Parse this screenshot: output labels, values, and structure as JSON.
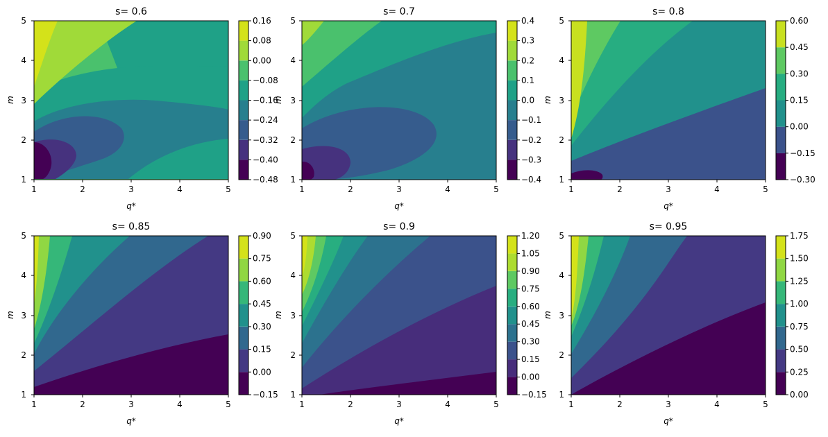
{
  "figure": {
    "panels": [
      {
        "title": "s= 0.6",
        "xlabel": "q*",
        "ylabel": "m",
        "x_ticks": [
          "1",
          "2",
          "3",
          "4",
          "5"
        ],
        "y_ticks": [
          "1",
          "2",
          "3",
          "4",
          "5"
        ],
        "colorbar": {
          "tick_labels": [
            "−0.48",
            "−0.40",
            "−0.32",
            "−0.24",
            "−0.16",
            "−0.08",
            "0.00",
            "0.08",
            "0.16"
          ],
          "colors": [
            "#440154",
            "#46327e",
            "#365c8d",
            "#277f8e",
            "#1fa187",
            "#4ac16d",
            "#a0da39",
            "#d4e21a"
          ]
        }
      },
      {
        "title": "s= 0.7",
        "xlabel": "q*",
        "ylabel": "m",
        "x_ticks": [
          "1",
          "2",
          "3",
          "4",
          "5"
        ],
        "y_ticks": [
          "1",
          "2",
          "3",
          "4",
          "5"
        ],
        "colorbar": {
          "tick_labels": [
            "−0.4",
            "−0.3",
            "−0.2",
            "−0.1",
            "0.0",
            "0.1",
            "0.2",
            "0.3",
            "0.4"
          ],
          "colors": [
            "#440154",
            "#46327e",
            "#365c8d",
            "#277f8e",
            "#1fa187",
            "#4ac16d",
            "#a0da39",
            "#d4e21a"
          ]
        }
      },
      {
        "title": "s= 0.8",
        "xlabel": "q*",
        "ylabel": "m",
        "x_ticks": [
          "1",
          "2",
          "3",
          "4",
          "5"
        ],
        "y_ticks": [
          "1",
          "2",
          "3",
          "4",
          "5"
        ],
        "colorbar": {
          "tick_labels": [
            "−0.30",
            "−0.15",
            "0.00",
            "0.15",
            "0.30",
            "0.45",
            "0.60"
          ],
          "colors": [
            "#440154",
            "#3b528b",
            "#21918c",
            "#27ad81",
            "#5ec962",
            "#c8e020"
          ]
        }
      },
      {
        "title": "s= 0.85",
        "xlabel": "q*",
        "ylabel": "m",
        "x_ticks": [
          "1",
          "2",
          "3",
          "4",
          "5"
        ],
        "y_ticks": [
          "1",
          "2",
          "3",
          "4",
          "5"
        ],
        "colorbar": {
          "tick_labels": [
            "−0.15",
            "0.00",
            "0.15",
            "0.30",
            "0.45",
            "0.60",
            "0.75",
            "0.90"
          ],
          "colors": [
            "#440154",
            "#443983",
            "#31688e",
            "#21918c",
            "#35b779",
            "#90d743",
            "#d4e21a"
          ]
        }
      },
      {
        "title": "s= 0.9",
        "xlabel": "q*",
        "ylabel": "m",
        "x_ticks": [
          "1",
          "2",
          "3",
          "4",
          "5"
        ],
        "y_ticks": [
          "1",
          "2",
          "3",
          "4",
          "5"
        ],
        "colorbar": {
          "tick_labels": [
            "−0.15",
            "0.00",
            "0.15",
            "0.30",
            "0.45",
            "0.60",
            "0.75",
            "0.90",
            "1.05",
            "1.20"
          ],
          "colors": [
            "#440154",
            "#472d7b",
            "#3b528b",
            "#2c728e",
            "#21918c",
            "#28ae80",
            "#5ec962",
            "#addc30",
            "#d4e21a"
          ]
        }
      },
      {
        "title": "s= 0.95",
        "xlabel": "q*",
        "ylabel": "m",
        "x_ticks": [
          "1",
          "2",
          "3",
          "4",
          "5"
        ],
        "y_ticks": [
          "1",
          "2",
          "3",
          "4",
          "5"
        ],
        "colorbar": {
          "tick_labels": [
            "0.00",
            "0.25",
            "0.50",
            "0.75",
            "1.00",
            "1.25",
            "1.50",
            "1.75"
          ],
          "colors": [
            "#440154",
            "#443983",
            "#31688e",
            "#21918c",
            "#35b779",
            "#90d743",
            "#d4e21a"
          ]
        }
      }
    ]
  },
  "chart_data": [
    {
      "type": "heatmap",
      "title": "s= 0.6",
      "xlabel": "q*",
      "ylabel": "m",
      "xlim": [
        1,
        5
      ],
      "ylim": [
        1,
        5
      ],
      "levels": [
        -0.48,
        -0.4,
        -0.32,
        -0.24,
        -0.16,
        -0.08,
        0.0,
        0.08,
        0.16
      ],
      "samples": [
        {
          "x": 1.0,
          "y": 1.4,
          "value": -0.44
        },
        {
          "x": 1.3,
          "y": 1.8,
          "value": -0.3
        },
        {
          "x": 2.5,
          "y": 2.2,
          "value": -0.2
        },
        {
          "x": 3.5,
          "y": 3.0,
          "value": -0.12
        },
        {
          "x": 4.5,
          "y": 1.5,
          "value": -0.04
        },
        {
          "x": 2.0,
          "y": 4.8,
          "value": 0.04
        },
        {
          "x": 1.1,
          "y": 4.8,
          "value": 0.12
        }
      ]
    },
    {
      "type": "heatmap",
      "title": "s= 0.7",
      "xlabel": "q*",
      "ylabel": "m",
      "xlim": [
        1,
        5
      ],
      "ylim": [
        1,
        5
      ],
      "levels": [
        -0.4,
        -0.3,
        -0.2,
        -0.1,
        0.0,
        0.1,
        0.2,
        0.3,
        0.4
      ],
      "samples": [
        {
          "x": 1.1,
          "y": 1.2,
          "value": -0.35
        },
        {
          "x": 1.5,
          "y": 1.5,
          "value": -0.25
        },
        {
          "x": 2.5,
          "y": 2.2,
          "value": -0.15
        },
        {
          "x": 4.0,
          "y": 2.5,
          "value": -0.05
        },
        {
          "x": 4.5,
          "y": 4.6,
          "value": 0.05
        },
        {
          "x": 1.5,
          "y": 4.5,
          "value": 0.15
        },
        {
          "x": 1.1,
          "y": 4.8,
          "value": 0.25
        }
      ]
    },
    {
      "type": "heatmap",
      "title": "s= 0.8",
      "xlabel": "q*",
      "ylabel": "m",
      "xlim": [
        1,
        5
      ],
      "ylim": [
        1,
        5
      ],
      "levels": [
        -0.3,
        -0.15,
        0.0,
        0.15,
        0.3,
        0.45,
        0.6
      ],
      "samples": [
        {
          "x": 1.3,
          "y": 1.1,
          "value": -0.2
        },
        {
          "x": 4.0,
          "y": 2.0,
          "value": -0.08
        },
        {
          "x": 4.0,
          "y": 4.0,
          "value": 0.08
        },
        {
          "x": 2.0,
          "y": 4.5,
          "value": 0.22
        },
        {
          "x": 1.5,
          "y": 4.0,
          "value": 0.38
        },
        {
          "x": 1.1,
          "y": 4.0,
          "value": 0.52
        }
      ]
    },
    {
      "type": "heatmap",
      "title": "s= 0.85",
      "xlabel": "q*",
      "ylabel": "m",
      "xlim": [
        1,
        5
      ],
      "ylim": [
        1,
        5
      ],
      "levels": [
        -0.15,
        0.0,
        0.15,
        0.3,
        0.45,
        0.6,
        0.75,
        0.9
      ],
      "samples": [
        {
          "x": 4.0,
          "y": 1.5,
          "value": -0.05
        },
        {
          "x": 4.0,
          "y": 3.5,
          "value": 0.08
        },
        {
          "x": 3.0,
          "y": 4.5,
          "value": 0.22
        },
        {
          "x": 2.0,
          "y": 4.5,
          "value": 0.38
        },
        {
          "x": 1.5,
          "y": 4.5,
          "value": 0.52
        },
        {
          "x": 1.2,
          "y": 4.5,
          "value": 0.68
        },
        {
          "x": 1.05,
          "y": 4.5,
          "value": 0.82
        }
      ]
    },
    {
      "type": "heatmap",
      "title": "s= 0.9",
      "xlabel": "q*",
      "ylabel": "m",
      "xlim": [
        1,
        5
      ],
      "ylim": [
        1,
        5
      ],
      "levels": [
        -0.15,
        0.0,
        0.15,
        0.3,
        0.45,
        0.6,
        0.75,
        0.9,
        1.05,
        1.2
      ],
      "samples": [
        {
          "x": 4.5,
          "y": 1.3,
          "value": -0.08
        },
        {
          "x": 4.0,
          "y": 2.5,
          "value": 0.08
        },
        {
          "x": 4.0,
          "y": 4.5,
          "value": 0.22
        },
        {
          "x": 2.5,
          "y": 4.5,
          "value": 0.38
        },
        {
          "x": 1.8,
          "y": 4.5,
          "value": 0.52
        },
        {
          "x": 1.5,
          "y": 4.5,
          "value": 0.68
        },
        {
          "x": 1.3,
          "y": 4.5,
          "value": 0.82
        },
        {
          "x": 1.15,
          "y": 4.5,
          "value": 0.98
        },
        {
          "x": 1.05,
          "y": 4.5,
          "value": 1.12
        }
      ]
    },
    {
      "type": "heatmap",
      "title": "s= 0.95",
      "xlabel": "q*",
      "ylabel": "m",
      "xlim": [
        1,
        5
      ],
      "ylim": [
        1,
        5
      ],
      "levels": [
        0.0,
        0.25,
        0.5,
        0.75,
        1.0,
        1.25,
        1.5,
        1.75
      ],
      "samples": [
        {
          "x": 4.5,
          "y": 1.5,
          "value": 0.12
        },
        {
          "x": 4.0,
          "y": 4.0,
          "value": 0.38
        },
        {
          "x": 2.5,
          "y": 4.5,
          "value": 0.62
        },
        {
          "x": 1.8,
          "y": 4.5,
          "value": 0.88
        },
        {
          "x": 1.4,
          "y": 4.5,
          "value": 1.12
        },
        {
          "x": 1.2,
          "y": 4.5,
          "value": 1.38
        },
        {
          "x": 1.05,
          "y": 4.5,
          "value": 1.62
        }
      ]
    }
  ]
}
